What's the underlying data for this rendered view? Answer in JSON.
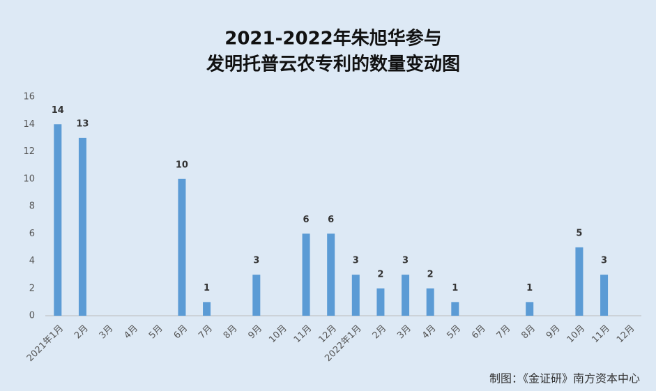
{
  "chart_data": {
    "type": "bar",
    "title": [
      "2021-2022年朱旭华参与",
      "发明托普云农专利的数量变动图"
    ],
    "categories": [
      "2021年1月",
      "2月",
      "3月",
      "4月",
      "5月",
      "6月",
      "7月",
      "8月",
      "9月",
      "10月",
      "11月",
      "12月",
      "2022年1月",
      "2月",
      "3月",
      "4月",
      "5月",
      "6月",
      "7月",
      "8月",
      "9月",
      "10月",
      "11月",
      "12月"
    ],
    "values": [
      14,
      13,
      0,
      0,
      0,
      10,
      1,
      0,
      3,
      0,
      6,
      6,
      3,
      2,
      3,
      2,
      1,
      0,
      0,
      1,
      0,
      5,
      3,
      0
    ],
    "color": "#5b9bd5",
    "ylim": [
      0,
      16
    ],
    "yticks": [
      0,
      2,
      4,
      6,
      8,
      10,
      12,
      14,
      16
    ],
    "grid": false,
    "source": "制图：《金证研》南方资本中心"
  }
}
